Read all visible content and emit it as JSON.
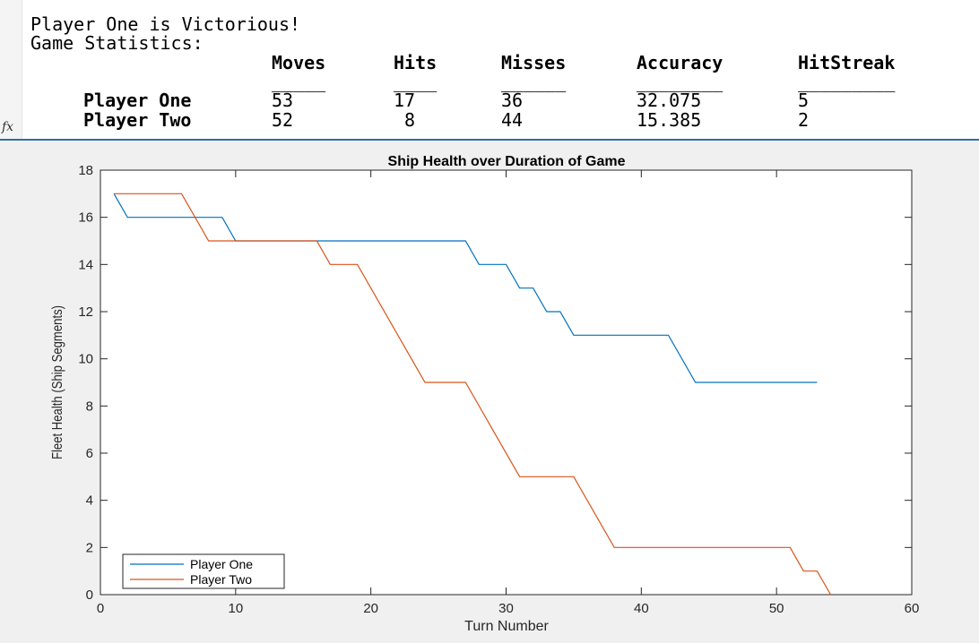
{
  "console": {
    "winner_message": "Player One is Victorious!",
    "stats_heading": "Game Statistics:",
    "columns": [
      "Moves",
      "Hits",
      "Misses",
      "Accuracy",
      "HitStreak"
    ],
    "underlines": [
      "_____",
      "____",
      "______",
      "________",
      "_________"
    ],
    "rows": [
      {
        "name": "Player One",
        "values": [
          "53",
          "17",
          "36",
          "32.075",
          "5"
        ]
      },
      {
        "name": "Player Two",
        "values": [
          "52",
          " 8",
          "44",
          "15.385",
          "2"
        ]
      }
    ],
    "fx_icon": "fx-icon"
  },
  "chart_data": {
    "type": "line",
    "title": "Ship Health over Duration of Game",
    "xlabel": "Turn Number",
    "ylabel": "Fleet Health (Ship Segments)",
    "xlim": [
      0,
      60
    ],
    "ylim": [
      0,
      18
    ],
    "xticks": [
      0,
      10,
      20,
      30,
      40,
      50,
      60
    ],
    "yticks": [
      0,
      2,
      4,
      6,
      8,
      10,
      12,
      14,
      16,
      18
    ],
    "grid": false,
    "legend_position": "bottom-left",
    "series": [
      {
        "name": "Player One",
        "color": "#0072bd",
        "points": [
          [
            1,
            17
          ],
          [
            2,
            16
          ],
          [
            9,
            16
          ],
          [
            10,
            15
          ],
          [
            27,
            15
          ],
          [
            28,
            14
          ],
          [
            30,
            14
          ],
          [
            31,
            13
          ],
          [
            32,
            13
          ],
          [
            33,
            12
          ],
          [
            34,
            12
          ],
          [
            35,
            11
          ],
          [
            42,
            11
          ],
          [
            44,
            9
          ],
          [
            53,
            9
          ]
        ]
      },
      {
        "name": "Player Two",
        "color": "#d95319",
        "points": [
          [
            1,
            17
          ],
          [
            6,
            17
          ],
          [
            8,
            15
          ],
          [
            16,
            15
          ],
          [
            17,
            14
          ],
          [
            19,
            14
          ],
          [
            24,
            9
          ],
          [
            27,
            9
          ],
          [
            31,
            5
          ],
          [
            35,
            5
          ],
          [
            38,
            2
          ],
          [
            51,
            2
          ],
          [
            52,
            1
          ],
          [
            53,
            1
          ],
          [
            54,
            0
          ]
        ]
      }
    ]
  }
}
